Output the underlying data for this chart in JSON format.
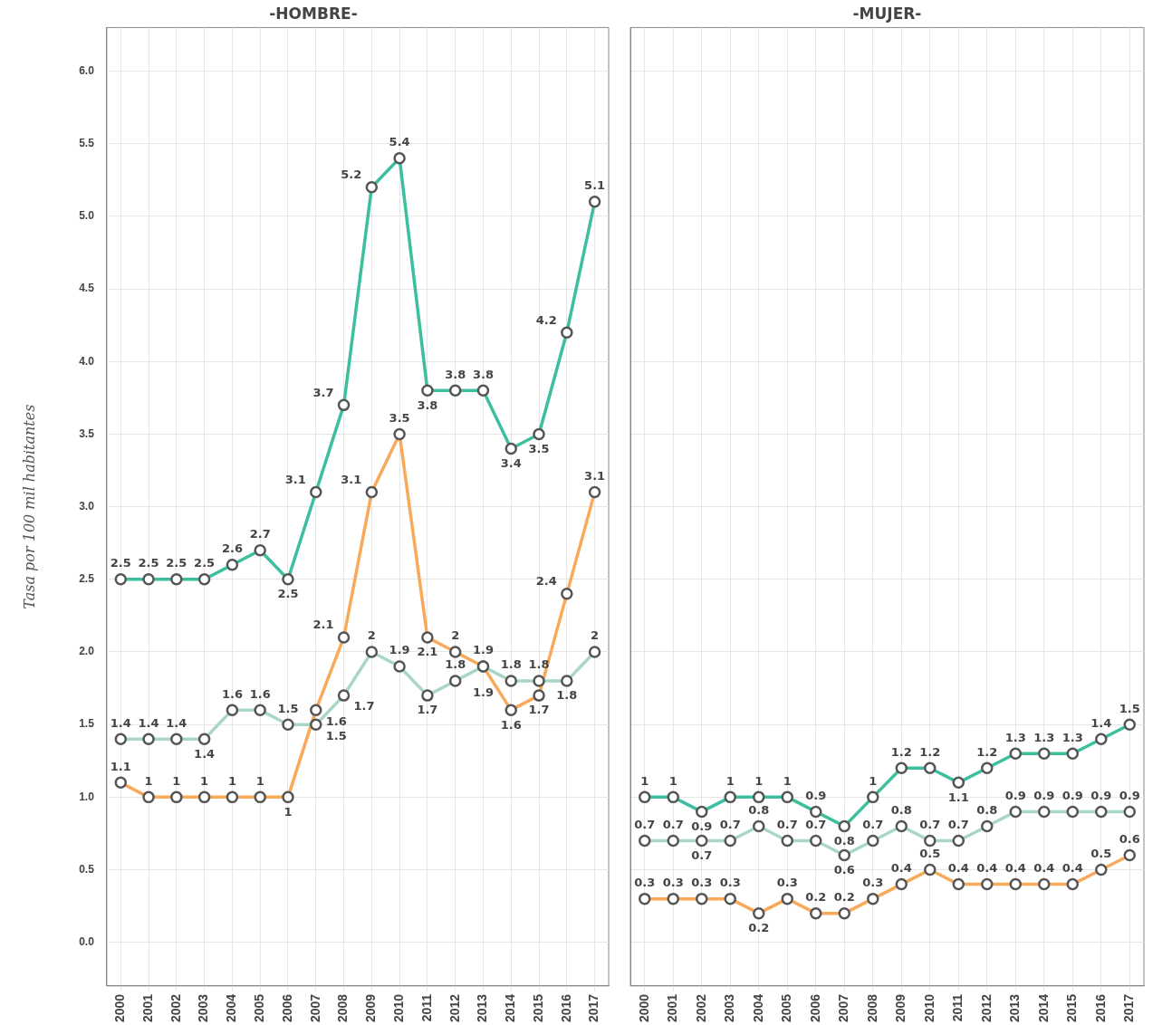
{
  "chart_data": [
    {
      "type": "line",
      "title": "-HOMBRE-",
      "ylabel": "Tasa por 100 mil habitantes",
      "categories": [
        "2000",
        "2001",
        "2002",
        "2003",
        "2004",
        "2005",
        "2006",
        "2007",
        "2008",
        "2009",
        "2010",
        "2011",
        "2012",
        "2013",
        "2014",
        "2015",
        "2016",
        "2017"
      ],
      "series": [
        {
          "color": "#3dbf9f",
          "values": [
            2.5,
            2.5,
            2.5,
            2.5,
            2.6,
            2.7,
            2.5,
            3.1,
            3.7,
            5.2,
            5.4,
            3.8,
            3.8,
            3.8,
            3.4,
            3.5,
            4.2,
            5.1
          ]
        },
        {
          "color": "#a9d6c6",
          "values": [
            1.4,
            1.4,
            1.4,
            1.4,
            1.6,
            1.6,
            1.5,
            1.5,
            1.7,
            2,
            1.9,
            1.7,
            1.8,
            1.9,
            1.8,
            1.8,
            1.8,
            2
          ]
        },
        {
          "color": "#f9a95a",
          "values": [
            1.1,
            1,
            1,
            1,
            1,
            1,
            1,
            1.6,
            2.1,
            3.1,
            3.5,
            2.1,
            2,
            1.9,
            1.6,
            1.7,
            2.4,
            3.1
          ]
        }
      ],
      "ylim": [
        -0.3,
        6.3
      ],
      "yticks": [
        {
          "value": 0,
          "label": "0.0"
        },
        {
          "value": 0.5,
          "label": "0.5"
        },
        {
          "value": 1,
          "label": "1.0"
        },
        {
          "value": 1.5,
          "label": "1.5"
        },
        {
          "value": 2,
          "label": "2.0"
        },
        {
          "value": 2.5,
          "label": "2.5"
        },
        {
          "value": 3,
          "label": "3.0"
        },
        {
          "value": 3.5,
          "label": "3.5"
        },
        {
          "value": 4,
          "label": "4.0"
        },
        {
          "value": 4.5,
          "label": "4.5"
        },
        {
          "value": 5,
          "label": "5.0"
        },
        {
          "value": 5.5,
          "label": "5.5"
        },
        {
          "value": 6,
          "label": "6.0"
        }
      ],
      "grid": true,
      "marker": "circle",
      "line_style": "solid",
      "data_labels": true,
      "legend": false
    },
    {
      "type": "line",
      "title": "-MUJER-",
      "categories": [
        "2000",
        "2001",
        "2002",
        "2003",
        "2004",
        "2005",
        "2006",
        "2007",
        "2008",
        "2009",
        "2010",
        "2011",
        "2012",
        "2013",
        "2014",
        "2015",
        "2016",
        "2017"
      ],
      "series": [
        {
          "color": "#3dbf9f",
          "values": [
            1,
            1,
            0.9,
            1,
            1,
            1,
            0.9,
            0.8,
            1,
            1.2,
            1.2,
            1.1,
            1.2,
            1.3,
            1.3,
            1.3,
            1.4,
            1.5
          ]
        },
        {
          "color": "#a9d6c6",
          "values": [
            0.7,
            0.7,
            0.7,
            0.7,
            0.8,
            0.7,
            0.7,
            0.6,
            0.7,
            0.8,
            0.7,
            0.7,
            0.8,
            0.9,
            0.9,
            0.9,
            0.9,
            0.9
          ]
        },
        {
          "color": "#f9a95a",
          "values": [
            0.3,
            0.3,
            0.3,
            0.3,
            0.2,
            0.3,
            0.2,
            0.2,
            0.3,
            0.4,
            0.5,
            0.4,
            0.4,
            0.4,
            0.4,
            0.4,
            0.5,
            0.6
          ]
        }
      ],
      "ylim": [
        -0.3,
        6.3
      ],
      "yticks": [
        0,
        0.5,
        1,
        1.5,
        2,
        2.5,
        3,
        3.5,
        4,
        4.5,
        5,
        5.5,
        6
      ],
      "tick_labels": "x",
      "grid": true,
      "marker": "circle",
      "line_style": "solid",
      "data_labels": true,
      "legend": false
    }
  ]
}
